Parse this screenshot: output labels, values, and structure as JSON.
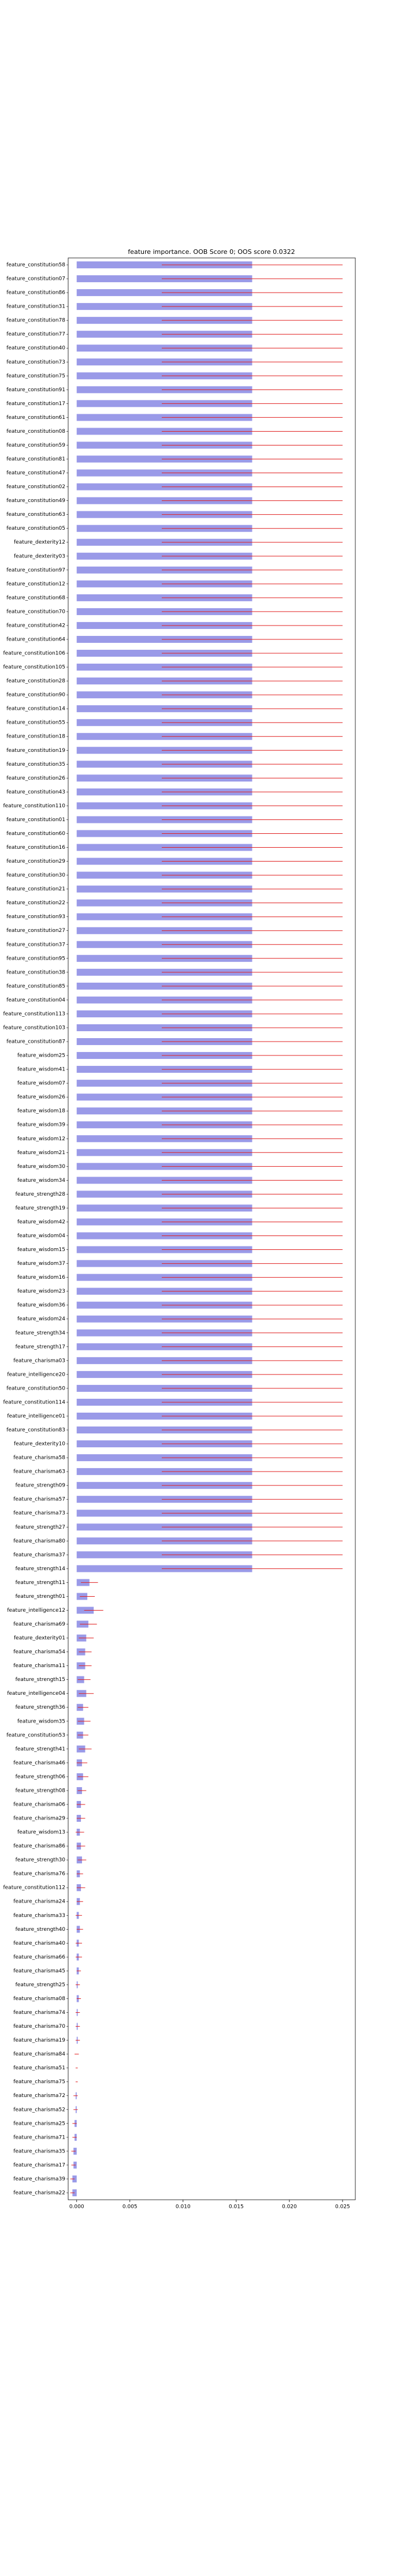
{
  "chart_data": {
    "type": "barh",
    "title": "feature importance. OOB Score 0; OOS score 0.0322",
    "categories": [
      "feature_constitution58",
      "feature_constitution07",
      "feature_constitution86",
      "feature_constitution31",
      "feature_constitution78",
      "feature_constitution77",
      "feature_constitution40",
      "feature_constitution73",
      "feature_constitution75",
      "feature_constitution91",
      "feature_constitution17",
      "feature_constitution61",
      "feature_constitution08",
      "feature_constitution59",
      "feature_constitution81",
      "feature_constitution47",
      "feature_constitution02",
      "feature_constitution49",
      "feature_constitution63",
      "feature_constitution05",
      "feature_dexterity12",
      "feature_dexterity03",
      "feature_constitution97",
      "feature_constitution12",
      "feature_constitution68",
      "feature_constitution70",
      "feature_constitution42",
      "feature_constitution64",
      "feature_constitution106",
      "feature_constitution105",
      "feature_constitution28",
      "feature_constitution90",
      "feature_constitution14",
      "feature_constitution55",
      "feature_constitution18",
      "feature_constitution19",
      "feature_constitution35",
      "feature_constitution26",
      "feature_constitution43",
      "feature_constitution110",
      "feature_constitution01",
      "feature_constitution60",
      "feature_constitution16",
      "feature_constitution29",
      "feature_constitution30",
      "feature_constitution21",
      "feature_constitution22",
      "feature_constitution93",
      "feature_constitution27",
      "feature_constitution37",
      "feature_constitution95",
      "feature_constitution38",
      "feature_constitution85",
      "feature_constitution04",
      "feature_constitution113",
      "feature_constitution103",
      "feature_constitution87",
      "feature_wisdom25",
      "feature_wisdom41",
      "feature_wisdom07",
      "feature_wisdom26",
      "feature_wisdom18",
      "feature_wisdom39",
      "feature_wisdom12",
      "feature_wisdom21",
      "feature_wisdom30",
      "feature_wisdom34",
      "feature_strength28",
      "feature_strength19",
      "feature_wisdom42",
      "feature_wisdom04",
      "feature_wisdom15",
      "feature_wisdom37",
      "feature_wisdom16",
      "feature_wisdom23",
      "feature_wisdom36",
      "feature_wisdom24",
      "feature_strength34",
      "feature_strength17",
      "feature_charisma03",
      "feature_intelligence20",
      "feature_constitution50",
      "feature_constitution114",
      "feature_intelligence01",
      "feature_constitution83",
      "feature_dexterity10",
      "feature_charisma58",
      "feature_charisma63",
      "feature_strength09",
      "feature_charisma57",
      "feature_charisma73",
      "feature_strength27",
      "feature_charisma80",
      "feature_charisma37",
      "feature_strength14",
      "feature_strength11",
      "feature_strength01",
      "feature_intelligence12",
      "feature_charisma69",
      "feature_dexterity01",
      "feature_charisma54",
      "feature_charisma11",
      "feature_strength15",
      "feature_intelligence04",
      "feature_strength36",
      "feature_wisdom35",
      "feature_constitution53",
      "feature_strength41",
      "feature_charisma46",
      "feature_strength06",
      "feature_strength08",
      "feature_charisma06",
      "feature_charisma29",
      "feature_wisdom13",
      "feature_charisma86",
      "feature_strength30",
      "feature_charisma76",
      "feature_constitution112",
      "feature_charisma24",
      "feature_charisma33",
      "feature_strength40",
      "feature_charisma40",
      "feature_charisma66",
      "feature_charisma45",
      "feature_strength25",
      "feature_charisma08",
      "feature_charisma74",
      "feature_charisma70",
      "feature_charisma19",
      "feature_charisma84",
      "feature_charisma51",
      "feature_charisma75",
      "feature_charisma72",
      "feature_charisma52",
      "feature_charisma25",
      "feature_charisma71",
      "feature_charisma35",
      "feature_charisma17",
      "feature_charisma39",
      "feature_charisma22"
    ],
    "values": [
      0.0165,
      0.0165,
      0.0165,
      0.0165,
      0.0165,
      0.0165,
      0.0165,
      0.0165,
      0.0165,
      0.0165,
      0.0165,
      0.0165,
      0.0165,
      0.0165,
      0.0165,
      0.0165,
      0.0165,
      0.0165,
      0.0165,
      0.0165,
      0.0165,
      0.0165,
      0.0165,
      0.0165,
      0.0165,
      0.0165,
      0.0165,
      0.0165,
      0.0165,
      0.0165,
      0.0165,
      0.0165,
      0.0165,
      0.0165,
      0.0165,
      0.0165,
      0.0165,
      0.0165,
      0.0165,
      0.0165,
      0.0165,
      0.0165,
      0.0165,
      0.0165,
      0.0165,
      0.0165,
      0.0165,
      0.0165,
      0.0165,
      0.0165,
      0.0165,
      0.0165,
      0.0165,
      0.0165,
      0.0165,
      0.0165,
      0.0165,
      0.0165,
      0.0165,
      0.0165,
      0.0165,
      0.0165,
      0.0165,
      0.0165,
      0.0165,
      0.0165,
      0.0165,
      0.0165,
      0.0165,
      0.0165,
      0.0165,
      0.0165,
      0.0165,
      0.0165,
      0.0165,
      0.0165,
      0.0165,
      0.0165,
      0.0165,
      0.0165,
      0.0165,
      0.0165,
      0.0165,
      0.0165,
      0.0165,
      0.0165,
      0.0165,
      0.0165,
      0.0165,
      0.0165,
      0.0165,
      0.0165,
      0.0165,
      0.0165,
      0.0165,
      0.0012,
      0.001,
      0.0016,
      0.0011,
      0.0009,
      0.0008,
      0.0008,
      0.0007,
      0.0009,
      0.0006,
      0.0007,
      0.0006,
      0.0008,
      0.0005,
      0.0006,
      0.0005,
      0.0004,
      0.0004,
      0.0003,
      0.0004,
      0.0005,
      0.0003,
      0.0004,
      0.0003,
      0.0002,
      0.0003,
      0.0002,
      0.0002,
      0.0002,
      0.0001,
      0.0002,
      0.0001,
      0.0001,
      0.0001,
      0.0,
      0.0,
      0.0,
      -0.0001,
      -0.0001,
      -0.0002,
      -0.0002,
      -0.0003,
      -0.0003,
      -0.0004,
      -0.0004
    ],
    "errors": [
      0.0085,
      0.0085,
      0.0085,
      0.0085,
      0.0085,
      0.0085,
      0.0085,
      0.0085,
      0.0085,
      0.0085,
      0.0085,
      0.0085,
      0.0085,
      0.0085,
      0.0085,
      0.0085,
      0.0085,
      0.0085,
      0.0085,
      0.0085,
      0.0085,
      0.0085,
      0.0085,
      0.0085,
      0.0085,
      0.0085,
      0.0085,
      0.0085,
      0.0085,
      0.0085,
      0.0085,
      0.0085,
      0.0085,
      0.0085,
      0.0085,
      0.0085,
      0.0085,
      0.0085,
      0.0085,
      0.0085,
      0.0085,
      0.0085,
      0.0085,
      0.0085,
      0.0085,
      0.0085,
      0.0085,
      0.0085,
      0.0085,
      0.0085,
      0.0085,
      0.0085,
      0.0085,
      0.0085,
      0.0085,
      0.0085,
      0.0085,
      0.0085,
      0.0085,
      0.0085,
      0.0085,
      0.0085,
      0.0085,
      0.0085,
      0.0085,
      0.0085,
      0.0085,
      0.0085,
      0.0085,
      0.0085,
      0.0085,
      0.0085,
      0.0085,
      0.0085,
      0.0085,
      0.0085,
      0.0085,
      0.0085,
      0.0085,
      0.0085,
      0.0085,
      0.0085,
      0.0085,
      0.0085,
      0.0085,
      0.0085,
      0.0085,
      0.0085,
      0.0085,
      0.0085,
      0.0085,
      0.0085,
      0.0085,
      0.0085,
      0.0085,
      0.0008,
      0.0007,
      0.0009,
      0.0008,
      0.0007,
      0.0006,
      0.0006,
      0.0006,
      0.0007,
      0.0005,
      0.0006,
      0.0005,
      0.0006,
      0.0005,
      0.0005,
      0.0004,
      0.0004,
      0.0004,
      0.0004,
      0.0004,
      0.0004,
      0.0003,
      0.0004,
      0.0003,
      0.0003,
      0.0003,
      0.0003,
      0.0003,
      0.0002,
      0.0002,
      0.0002,
      0.0002,
      0.0002,
      0.0002,
      0.0002,
      0.0001,
      0.0001,
      0.0002,
      0.0002,
      0.0002,
      0.0002,
      0.0002,
      0.0002,
      0.0002,
      0.0002
    ],
    "color": "#9a9ae8",
    "error_color": "#e02020",
    "xlim": [
      -0.0008,
      0.0262
    ],
    "xticks": [
      {
        "value": 0,
        "label": "0.000"
      },
      {
        "value": 0.005,
        "label": "0.005"
      },
      {
        "value": 0.01,
        "label": "0.010"
      },
      {
        "value": 0.015,
        "label": "0.015"
      },
      {
        "value": 0.02,
        "label": "0.020"
      },
      {
        "value": 0.025,
        "label": "0.025"
      }
    ]
  }
}
